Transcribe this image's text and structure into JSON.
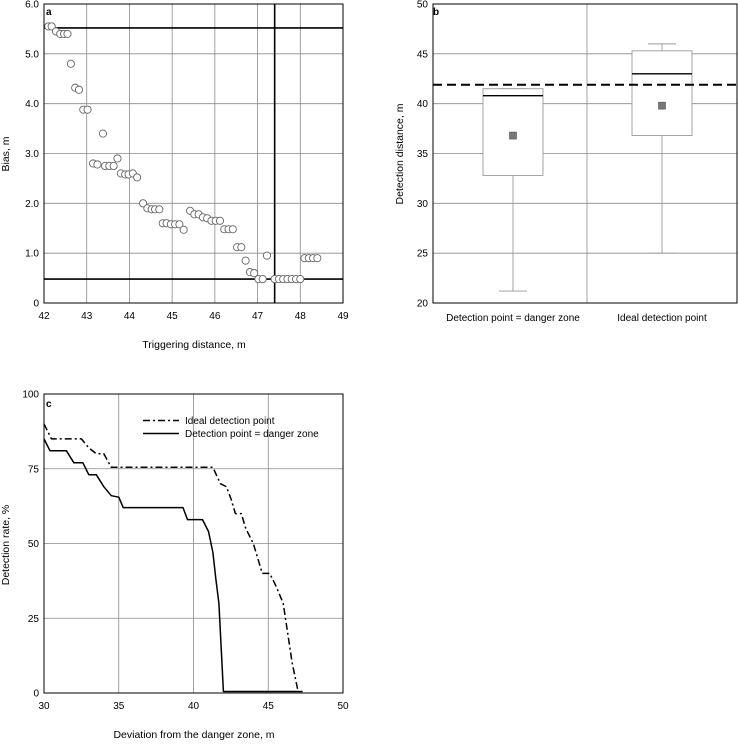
{
  "chart_data": [
    {
      "type": "scatter",
      "panel": "a",
      "title": "",
      "xlabel": "Triggering distance, m",
      "ylabel": "Bias, m",
      "xlim": [
        42,
        49
      ],
      "ylim": [
        0,
        6
      ],
      "xticks": [
        "42",
        "43",
        "44",
        "45",
        "46",
        "47",
        "48",
        "49"
      ],
      "yticks": [
        "0",
        "1.0",
        "2.0",
        "3.0",
        "4.0",
        "5.0",
        "6.0"
      ],
      "grid": true,
      "reference_lines": {
        "horizontal": [
          5.52,
          0.48
        ],
        "vertical": [
          47.4
        ]
      },
      "points": [
        [
          42.1,
          5.55
        ],
        [
          42.18,
          5.55
        ],
        [
          42.28,
          5.45
        ],
        [
          42.38,
          5.4
        ],
        [
          42.47,
          5.4
        ],
        [
          42.55,
          5.4
        ],
        [
          42.63,
          4.8
        ],
        [
          42.73,
          4.32
        ],
        [
          42.82,
          4.28
        ],
        [
          42.92,
          3.88
        ],
        [
          43.02,
          3.88
        ],
        [
          43.38,
          3.4
        ],
        [
          43.15,
          2.8
        ],
        [
          43.25,
          2.78
        ],
        [
          43.43,
          2.75
        ],
        [
          43.53,
          2.75
        ],
        [
          43.63,
          2.75
        ],
        [
          43.72,
          2.9
        ],
        [
          43.8,
          2.6
        ],
        [
          43.9,
          2.58
        ],
        [
          43.98,
          2.58
        ],
        [
          44.08,
          2.6
        ],
        [
          44.18,
          2.52
        ],
        [
          44.32,
          2.0
        ],
        [
          44.42,
          1.9
        ],
        [
          44.52,
          1.88
        ],
        [
          44.6,
          1.88
        ],
        [
          44.7,
          1.88
        ],
        [
          44.78,
          1.6
        ],
        [
          44.87,
          1.6
        ],
        [
          44.97,
          1.58
        ],
        [
          45.07,
          1.58
        ],
        [
          45.17,
          1.58
        ],
        [
          45.27,
          1.47
        ],
        [
          45.42,
          1.85
        ],
        [
          45.52,
          1.78
        ],
        [
          45.62,
          1.78
        ],
        [
          45.72,
          1.72
        ],
        [
          45.82,
          1.7
        ],
        [
          45.92,
          1.65
        ],
        [
          46.02,
          1.65
        ],
        [
          46.12,
          1.65
        ],
        [
          46.22,
          1.48
        ],
        [
          46.32,
          1.48
        ],
        [
          46.42,
          1.48
        ],
        [
          46.52,
          1.12
        ],
        [
          46.62,
          1.12
        ],
        [
          46.72,
          0.85
        ],
        [
          46.82,
          0.62
        ],
        [
          46.92,
          0.6
        ],
        [
          47.02,
          0.48
        ],
        [
          47.12,
          0.48
        ],
        [
          47.22,
          0.95
        ],
        [
          47.4,
          0.48
        ],
        [
          47.5,
          0.48
        ],
        [
          47.6,
          0.48
        ],
        [
          47.7,
          0.48
        ],
        [
          47.8,
          0.48
        ],
        [
          47.9,
          0.48
        ],
        [
          48.0,
          0.48
        ],
        [
          48.1,
          0.9
        ],
        [
          48.2,
          0.9
        ],
        [
          48.3,
          0.9
        ],
        [
          48.4,
          0.9
        ]
      ]
    },
    {
      "type": "box",
      "panel": "b",
      "title": "",
      "xlabel": "",
      "ylabel": "Detection distance, m",
      "ylim": [
        20,
        50
      ],
      "yticks": [
        "20",
        "25",
        "30",
        "35",
        "40",
        "45",
        "50"
      ],
      "categories": [
        "Detection point = danger zone",
        "Ideal detection point"
      ],
      "boxes": [
        {
          "min": 21.2,
          "q1": 32.8,
          "median": 40.8,
          "q3": 41.5,
          "max": 41.5,
          "mean": 36.8
        },
        {
          "min": 25.0,
          "q1": 36.8,
          "median": 43.0,
          "q3": 45.3,
          "max": 46.0,
          "mean": 39.8
        }
      ],
      "reference_line": 41.9,
      "grid": true
    },
    {
      "type": "line",
      "panel": "c",
      "title": "",
      "xlabel": "Deviation from the danger zone, m",
      "ylabel": "Detection rate, %",
      "xlim": [
        30,
        50
      ],
      "ylim": [
        0,
        100
      ],
      "xticks": [
        "30",
        "35",
        "40",
        "45",
        "50"
      ],
      "yticks": [
        "0",
        "25",
        "50",
        "75",
        "100"
      ],
      "legend_position": "top-right",
      "grid": true,
      "series": [
        {
          "name": "Ideal detection point",
          "style": "dashdot",
          "points": [
            [
              30,
              90
            ],
            [
              30.5,
              85
            ],
            [
              31,
              85
            ],
            [
              32.5,
              85
            ],
            [
              33,
              82
            ],
            [
              33.5,
              80
            ],
            [
              34,
              80
            ],
            [
              34.5,
              75.5
            ],
            [
              38,
              75.5
            ],
            [
              41.3,
              75.5
            ],
            [
              41.8,
              70
            ],
            [
              42.2,
              69
            ],
            [
              42.5,
              65
            ],
            [
              42.8,
              60
            ],
            [
              43.2,
              60
            ],
            [
              43.5,
              55
            ],
            [
              44,
              50
            ],
            [
              44.3,
              45
            ],
            [
              44.6,
              40
            ],
            [
              45.1,
              40
            ],
            [
              45.5,
              36
            ],
            [
              46,
              30
            ],
            [
              46.3,
              20
            ],
            [
              46.6,
              10
            ],
            [
              47,
              0.5
            ]
          ]
        },
        {
          "name": "Detection point = danger zone",
          "style": "solid",
          "points": [
            [
              30,
              85
            ],
            [
              30.4,
              81
            ],
            [
              31.5,
              81
            ],
            [
              32,
              77
            ],
            [
              32.6,
              77
            ],
            [
              33,
              73
            ],
            [
              33.5,
              73
            ],
            [
              34,
              69
            ],
            [
              34.5,
              66
            ],
            [
              35,
              65.5
            ],
            [
              35.3,
              62
            ],
            [
              38,
              62
            ],
            [
              39.3,
              62
            ],
            [
              39.6,
              58
            ],
            [
              40.6,
              58
            ],
            [
              41,
              54
            ],
            [
              41.3,
              47
            ],
            [
              41.5,
              38
            ],
            [
              41.7,
              30
            ],
            [
              41.85,
              15
            ],
            [
              42,
              0.5
            ],
            [
              47.3,
              0.5
            ]
          ]
        }
      ]
    }
  ]
}
